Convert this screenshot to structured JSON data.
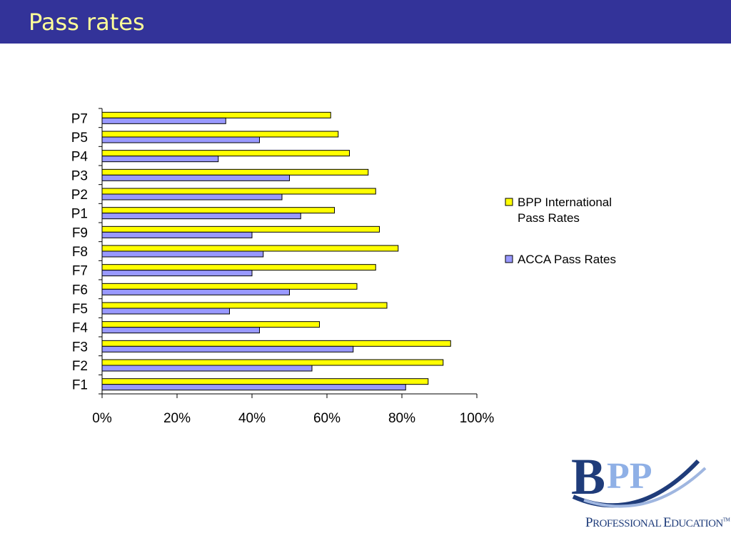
{
  "slide": {
    "title": "Pass rates"
  },
  "logo": {
    "mark_text": "BPP",
    "sub_first": "P",
    "sub_rest": "ROFESSIONAL ",
    "sub_first2": "E",
    "sub_rest2": "DUCATION",
    "tm": "TM"
  },
  "colors": {
    "title_bar": "#333399",
    "title_text": "#ffff99",
    "bpp_series": "#ffff00",
    "acca_series": "#9999ff"
  },
  "chart_data": {
    "type": "bar",
    "orientation": "horizontal",
    "categories": [
      "F1",
      "F2",
      "F3",
      "F4",
      "F5",
      "F6",
      "F7",
      "F8",
      "F9",
      "P1",
      "P2",
      "P3",
      "P4",
      "P5",
      "P7"
    ],
    "series": [
      {
        "name": "BPP International Pass Rates",
        "name_lines": [
          "BPP International",
          "Pass Rates"
        ],
        "color": "#ffff00",
        "values": [
          87,
          91,
          93,
          58,
          76,
          68,
          73,
          79,
          74,
          62,
          73,
          71,
          66,
          63,
          61
        ]
      },
      {
        "name": "ACCA Pass Rates",
        "name_lines": [
          "ACCA Pass Rates"
        ],
        "color": "#9999ff",
        "values": [
          81,
          56,
          67,
          42,
          34,
          50,
          40,
          43,
          40,
          53,
          48,
          50,
          31,
          42,
          33
        ]
      }
    ],
    "xlim": [
      0,
      100
    ],
    "x_ticks": [
      "0%",
      "20%",
      "40%",
      "60%",
      "80%",
      "100%"
    ],
    "grid": false,
    "legend_position": "right"
  }
}
